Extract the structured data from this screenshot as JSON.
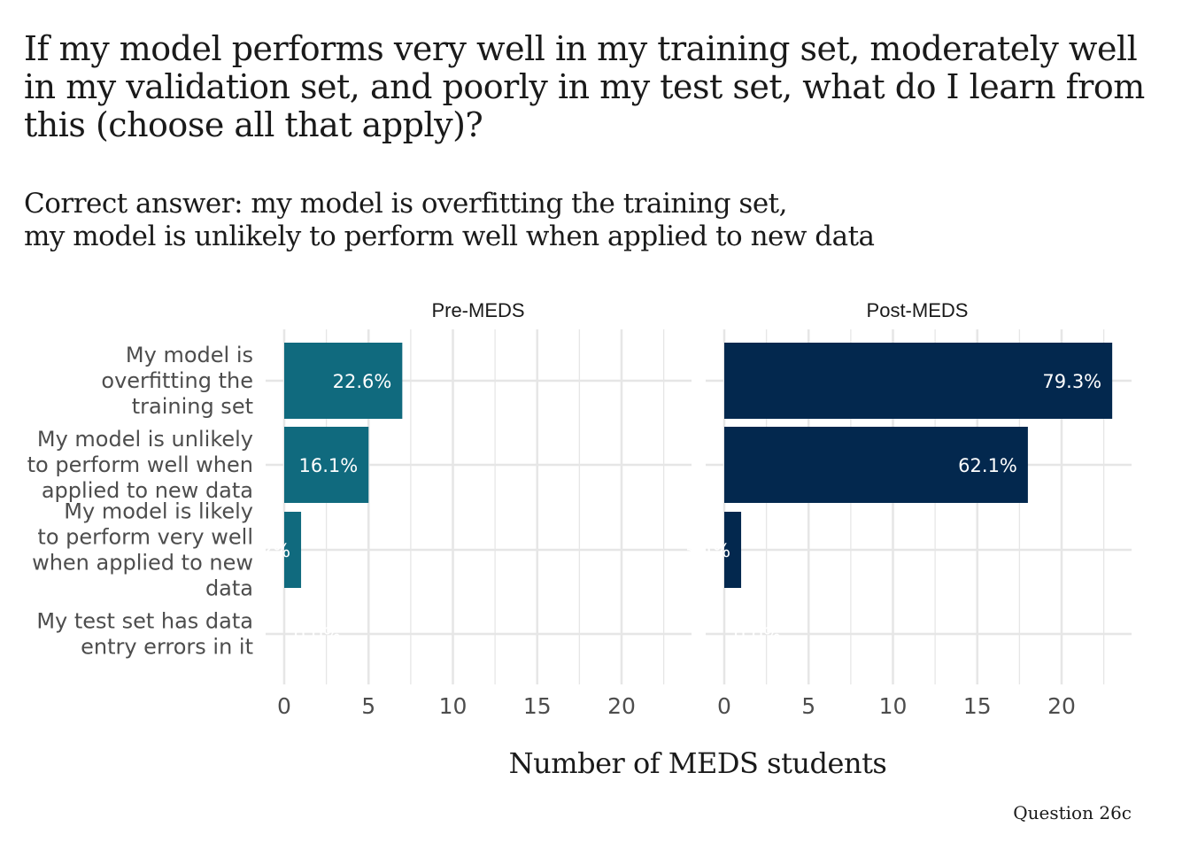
{
  "title_lines": [
    "If my model performs very well in my training set, moderately well",
    "in my validation set, and poorly in my test set, what do I learn from",
    "this (choose all that apply)?"
  ],
  "subtitle_lines": [
    "Correct answer: my model is overfitting the training set,",
    "my model is unlikely to perform well when applied to new data"
  ],
  "caption": "Question 26c",
  "chart_data": {
    "type": "bar",
    "orientation": "horizontal",
    "title": "If my model performs very well in my training set, moderately well in my validation set, and poorly in my test set, what do I learn from this (choose all that apply)?",
    "subtitle": "Correct answer: my model is overfitting the training set, my model is unlikely to perform well when applied to new data",
    "xlabel": "Number of MEDS students",
    "ylabel": "",
    "xlim": [
      0,
      24
    ],
    "xticks": [
      0,
      5,
      10,
      15,
      20
    ],
    "grid": true,
    "categories": [
      [
        "My model is",
        "overfitting the",
        "training set"
      ],
      [
        "My model is unlikely",
        "to perform well when",
        "applied to new data"
      ],
      [
        "My model is likely",
        "to perform very well",
        "when applied to new",
        "data"
      ],
      [
        "My test set has data",
        "entry errors in it"
      ]
    ],
    "facets": [
      {
        "name": "Pre-MEDS",
        "color": "#106a7e",
        "values": [
          7,
          5,
          1,
          0
        ],
        "labels": [
          "22.6%",
          "16.1%",
          "3.2%",
          "0.0%"
        ]
      },
      {
        "name": "Post-MEDS",
        "color": "#03284e",
        "values": [
          23,
          18,
          1,
          0
        ],
        "labels": [
          "79.3%",
          "62.1%",
          "3.4%",
          "0.0%"
        ]
      }
    ]
  }
}
